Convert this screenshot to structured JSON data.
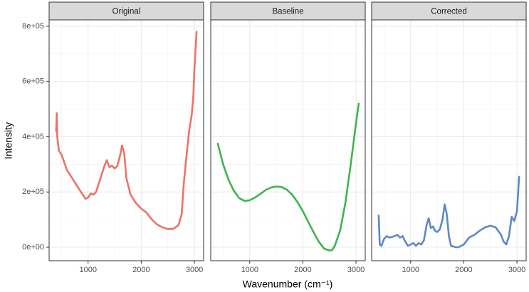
{
  "chart_data": {
    "type": "line",
    "x_label": "Wavenumber (cm⁻¹)",
    "y_label": "Intensity",
    "xlim": [
      267,
      3173
    ],
    "xticks": [
      1000,
      2000,
      3000
    ],
    "xminor": [
      500,
      1500,
      2500
    ],
    "ylim": [
      -48900,
      823000
    ],
    "yticks": [
      {
        "value": 0,
        "label": "0e+00"
      },
      {
        "value": 200000,
        "label": "2e+05"
      },
      {
        "value": 400000,
        "label": "4e+05"
      },
      {
        "value": 600000,
        "label": "6e+05"
      },
      {
        "value": 800000,
        "label": "8e+05"
      }
    ],
    "yminor": [
      100000,
      300000,
      500000,
      700000
    ],
    "grid": true,
    "facets": [
      {
        "name": "Original",
        "color": "#ee7266",
        "x": [
          400,
          410,
          420,
          450,
          500,
          600,
          700,
          800,
          900,
          950,
          1000,
          1050,
          1100,
          1150,
          1200,
          1300,
          1350,
          1400,
          1450,
          1500,
          1550,
          1600,
          1640,
          1680,
          1720,
          1800,
          1900,
          2000,
          2100,
          2200,
          2300,
          2400,
          2500,
          2600,
          2700,
          2760,
          2800,
          2850,
          2900,
          2950,
          2980,
          3000,
          3040
        ],
        "values": [
          420000,
          485000,
          400000,
          350000,
          335000,
          280000,
          250000,
          220000,
          190000,
          175000,
          180000,
          195000,
          190000,
          200000,
          230000,
          290000,
          315000,
          290000,
          295000,
          285000,
          295000,
          330000,
          368000,
          340000,
          250000,
          190000,
          160000,
          140000,
          125000,
          100000,
          82000,
          72000,
          66000,
          66000,
          80000,
          120000,
          230000,
          330000,
          420000,
          480000,
          550000,
          650000,
          780000
        ]
      },
      {
        "name": "Baseline",
        "color": "#3db54a",
        "x": [
          400,
          500,
          600,
          700,
          800,
          900,
          1000,
          1100,
          1200,
          1300,
          1400,
          1500,
          1600,
          1700,
          1800,
          1900,
          2000,
          2100,
          2200,
          2300,
          2400,
          2500,
          2550,
          2600,
          2700,
          2800,
          2900,
          3000,
          3050
        ],
        "values": [
          375000,
          300000,
          245000,
          205000,
          178000,
          168000,
          170000,
          180000,
          193000,
          207000,
          216000,
          220000,
          218000,
          208000,
          190000,
          163000,
          130000,
          92000,
          55000,
          20000,
          -5000,
          -12000,
          -10000,
          5000,
          60000,
          160000,
          300000,
          450000,
          520000
        ]
      },
      {
        "name": "Corrected",
        "color": "#5c88c8",
        "x": [
          400,
          420,
          450,
          500,
          550,
          600,
          700,
          750,
          800,
          850,
          900,
          950,
          1000,
          1050,
          1100,
          1150,
          1200,
          1250,
          1300,
          1340,
          1380,
          1420,
          1460,
          1500,
          1550,
          1600,
          1640,
          1680,
          1720,
          1760,
          1850,
          1900,
          2000,
          2100,
          2200,
          2300,
          2400,
          2500,
          2600,
          2700,
          2750,
          2800,
          2850,
          2900,
          2950,
          3000,
          3040
        ],
        "values": [
          115000,
          10000,
          5000,
          30000,
          40000,
          35000,
          40000,
          45000,
          35000,
          40000,
          20000,
          5000,
          10000,
          15000,
          5000,
          15000,
          10000,
          25000,
          80000,
          105000,
          70000,
          75000,
          60000,
          55000,
          65000,
          100000,
          155000,
          120000,
          40000,
          5000,
          0,
          0,
          10000,
          35000,
          45000,
          60000,
          72000,
          78000,
          72000,
          45000,
          20000,
          10000,
          40000,
          110000,
          95000,
          130000,
          255000
        ]
      }
    ]
  }
}
